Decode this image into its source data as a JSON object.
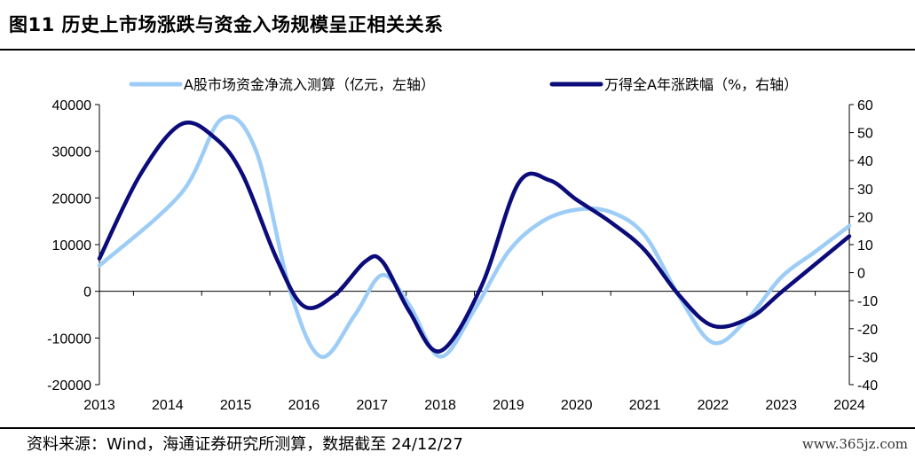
{
  "figure": {
    "title": "图11 历史上市场涨跌与资金入场规模呈正相关关系",
    "source": "资料来源：Wind，海通证券研究所测算，数据截至 24/12/27",
    "watermark": "www.365jz.com"
  },
  "colors": {
    "fund_flow": "#9dcdf6",
    "index_return": "#0b0b7a",
    "axis": "#000000"
  },
  "chart_data": {
    "type": "line",
    "title": "",
    "x": [
      2013,
      2014,
      2015,
      2016,
      2017,
      2018,
      2019,
      2020,
      2021,
      2022,
      2023,
      2024
    ],
    "xlabel": "",
    "legend_position": "top",
    "grid": false,
    "y_left": {
      "label": "",
      "range": [
        -20000,
        40000
      ],
      "ticks": [
        -20000,
        -10000,
        0,
        10000,
        20000,
        30000,
        40000
      ]
    },
    "y_right": {
      "label": "",
      "range": [
        -40,
        60
      ],
      "ticks": [
        -40,
        -30,
        -20,
        -10,
        0,
        10,
        20,
        30,
        40,
        50,
        60
      ]
    },
    "series": [
      {
        "name": "A股市场资金净流入测算（亿元，左轴）",
        "axis": "left",
        "curve_x": [
          2013,
          2014.2,
          2014.8,
          2015.3,
          2015.8,
          2016.25,
          2016.75,
          2017.15,
          2017.55,
          2018.0,
          2018.5,
          2019.0,
          2019.5,
          2020.0,
          2020.5,
          2021.0,
          2021.5,
          2022.0,
          2022.5,
          2023.0,
          2023.5,
          2024.0
        ],
        "curve_y": [
          5500,
          21000,
          37000,
          30000,
          0,
          -14000,
          -5000,
          3500,
          -3000,
          -14000,
          -4000,
          8500,
          15000,
          17500,
          17000,
          12000,
          -1000,
          -11000,
          -6000,
          3000,
          8500,
          14000
        ]
      },
      {
        "name": "万得全A年涨跌幅（%，右轴）",
        "axis": "right",
        "curve_x": [
          2013,
          2013.6,
          2014.2,
          2014.7,
          2015.1,
          2015.6,
          2016.0,
          2016.45,
          2016.9,
          2017.15,
          2017.55,
          2018.0,
          2018.6,
          2019.15,
          2019.6,
          2020.0,
          2020.5,
          2021.0,
          2021.5,
          2022.0,
          2022.55,
          2023.0,
          2023.5,
          2024.0
        ],
        "curve_y": [
          5,
          35,
          53,
          48,
          35,
          5,
          -12,
          -8,
          4,
          4,
          -14,
          -28,
          -5,
          32,
          33,
          26,
          18,
          8,
          -8,
          -19,
          -16,
          -7,
          3,
          13
        ]
      }
    ]
  }
}
